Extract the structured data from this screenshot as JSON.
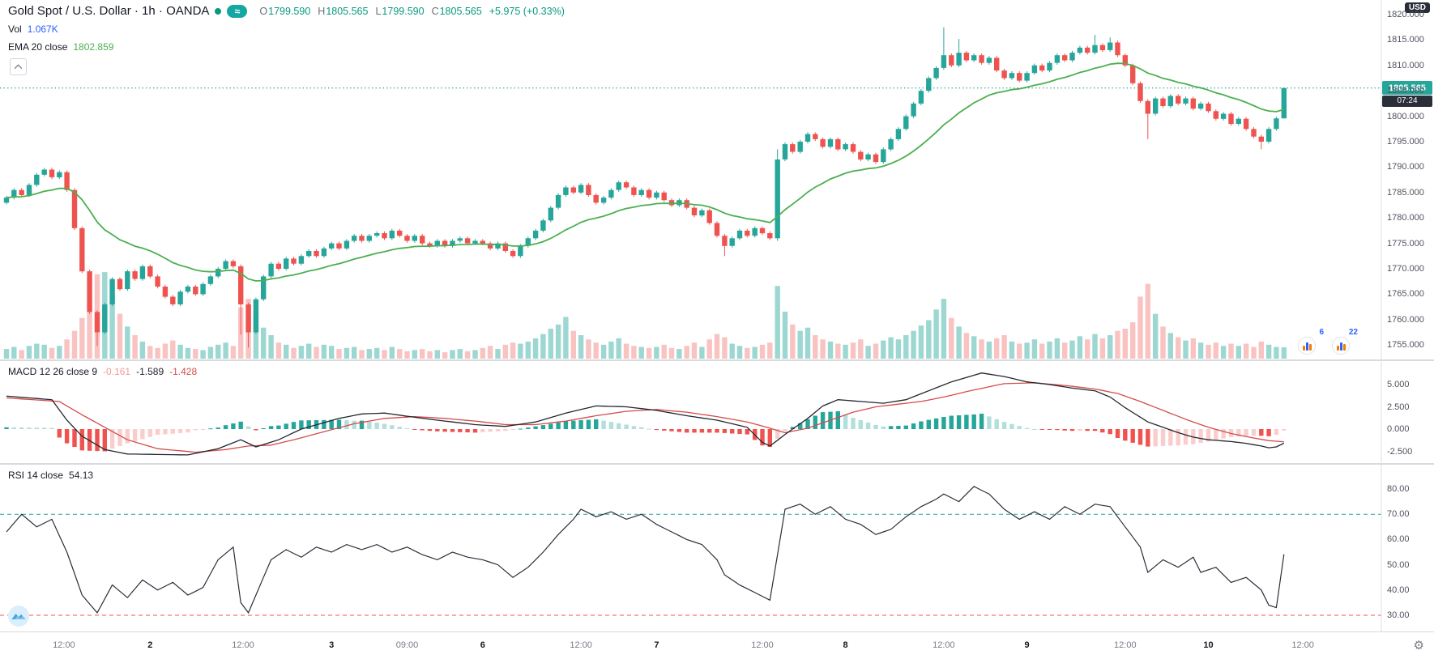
{
  "header": {
    "title": "Gold Spot / U.S. Dollar · 1h · OANDA",
    "provider_glyph": "≈",
    "ohlc": [
      {
        "k": "O",
        "v": "1799.590"
      },
      {
        "k": "H",
        "v": "1805.565"
      },
      {
        "k": "L",
        "v": "1799.590"
      },
      {
        "k": "C",
        "v": "1805.565"
      }
    ],
    "change": "+5.975 (+0.33%)",
    "vol_label": "Vol",
    "vol_value": "1.067K",
    "ema_label": "EMA 20 close",
    "ema_value": "1802.859"
  },
  "macd_pane": {
    "label": "MACD 12 26 close 9",
    "values": [
      "-0.161",
      "-1.589",
      "-1.428"
    ],
    "axis_labels": [
      "5.000",
      "2.500",
      "0.000",
      "-2.500"
    ]
  },
  "rsi_pane": {
    "label": "RSI 14 close",
    "value": "54.13",
    "axis_labels": [
      "80.00",
      "70.00",
      "60.00",
      "50.00",
      "40.00",
      "30.00"
    ]
  },
  "price_axis": {
    "labels": [
      "1820.000",
      "1815.000",
      "1810.000",
      "1805.000",
      "1800.000",
      "1795.000",
      "1790.000",
      "1785.000",
      "1780.000",
      "1775.000",
      "1770.000",
      "1765.000",
      "1760.000",
      "1755.000"
    ],
    "currency_label": "USD",
    "last_price": "1805.565",
    "countdown": "07:24"
  },
  "time_axis": {
    "labels": [
      {
        "text": "12:00",
        "bar": 7.6,
        "type": "time"
      },
      {
        "text": "2",
        "bar": 19,
        "type": "day"
      },
      {
        "text": "12:00",
        "bar": 31.3,
        "type": "time"
      },
      {
        "text": "3",
        "bar": 43,
        "type": "day"
      },
      {
        "text": "09:00",
        "bar": 53,
        "type": "time"
      },
      {
        "text": "6",
        "bar": 63,
        "type": "day"
      },
      {
        "text": "12:00",
        "bar": 76,
        "type": "time"
      },
      {
        "text": "7",
        "bar": 86,
        "type": "day"
      },
      {
        "text": "12:00",
        "bar": 100,
        "type": "time"
      },
      {
        "text": "8",
        "bar": 111,
        "type": "day"
      },
      {
        "text": "12:00",
        "bar": 124,
        "type": "time"
      },
      {
        "text": "9",
        "bar": 135,
        "type": "day"
      },
      {
        "text": "12:00",
        "bar": 148,
        "type": "time"
      },
      {
        "text": "10",
        "bar": 159,
        "type": "day"
      },
      {
        "text": "12:00",
        "bar": 171.5,
        "type": "time"
      }
    ]
  },
  "badges": {
    "gauge1": "6",
    "gauge2": "22"
  },
  "colors": {
    "up": "#26a69a",
    "down": "#ef5350",
    "vol_up": "rgba(38,166,154,0.45)",
    "vol_down": "rgba(239,83,80,0.35)",
    "ema": "#4caf50",
    "current_price_line": "#089981",
    "price_badge_bg": "#26a69a",
    "countdown_bg": "#2a2e39",
    "macd_line": "#22262f",
    "signal_line": "#d64b4b",
    "hist_pos": "#26a69a",
    "hist_pos_light": "#b2dfdb",
    "hist_neg": "#ef5350",
    "hist_neg_light": "#facdcd",
    "rsi_line": "#2a2e39",
    "rsi_upper_band": "#26a69a",
    "rsi_lower_band": "#ef5350",
    "ohlc_value": "#089981",
    "vol_value": "#2962ff",
    "ema_value": "#4caf50",
    "hist_value_text": "#f29999",
    "macd_value_text": "#22262f",
    "signal_value_text": "#d64b4b",
    "axis_text": "#50535e",
    "day_label": "#131722",
    "time_label": "#787b86",
    "divider": "#b2b5be",
    "title_text": "#131722",
    "provider_icon_bg": "#15a8a2",
    "market_open_dot": "#089981"
  },
  "chart_data": [
    {
      "type": "candlestick",
      "title": "Gold Spot / U.S. Dollar",
      "interval": "1h",
      "exchange": "OANDA",
      "indicators": [
        "EMA 20",
        "Volume"
      ],
      "ema_period": 20,
      "ema_current": 1802.859,
      "volume_current_k": 1.067,
      "ohlc_current": {
        "open": 1799.59,
        "high": 1805.565,
        "low": 1799.59,
        "close": 1805.565,
        "change_pct": 0.33
      },
      "ylim": [
        1753,
        1822
      ],
      "first_open": 1783.0,
      "closes": [
        1784.0,
        1785.5,
        1784.5,
        1786.5,
        1788.5,
        1789.5,
        1788.0,
        1789.0,
        1785.5,
        1778.0,
        1769.5,
        1761.5,
        1757.5,
        1763.0,
        1768.0,
        1766.0,
        1769.5,
        1768.0,
        1770.5,
        1768.5,
        1766.5,
        1764.5,
        1763.0,
        1765.5,
        1766.5,
        1765.0,
        1767.0,
        1768.5,
        1770.0,
        1771.5,
        1770.5,
        1763.0,
        1757.5,
        1764.0,
        1768.5,
        1771.0,
        1770.0,
        1772.0,
        1771.0,
        1772.5,
        1773.5,
        1772.5,
        1774.0,
        1775.0,
        1774.0,
        1775.5,
        1776.5,
        1775.5,
        1776.5,
        1777.0,
        1776.0,
        1777.5,
        1776.5,
        1775.5,
        1776.5,
        1775.0,
        1774.5,
        1775.5,
        1774.5,
        1775.5,
        1776.0,
        1775.0,
        1775.5,
        1775.0,
        1774.0,
        1775.0,
        1773.5,
        1772.5,
        1774.5,
        1776.0,
        1777.5,
        1779.5,
        1782.0,
        1784.5,
        1786.0,
        1785.0,
        1786.5,
        1784.5,
        1783.0,
        1784.0,
        1785.5,
        1787.0,
        1786.0,
        1784.5,
        1785.5,
        1784.0,
        1785.0,
        1783.5,
        1782.5,
        1783.5,
        1782.0,
        1780.5,
        1781.5,
        1779.0,
        1776.5,
        1774.5,
        1776.0,
        1777.5,
        1776.5,
        1778.0,
        1777.0,
        1776.0,
        1791.5,
        1794.5,
        1793.0,
        1795.0,
        1796.5,
        1795.5,
        1794.0,
        1795.5,
        1793.5,
        1794.5,
        1793.0,
        1791.5,
        1792.5,
        1791.0,
        1793.5,
        1795.5,
        1797.5,
        1800.0,
        1802.5,
        1805.0,
        1807.5,
        1809.5,
        1812.0,
        1810.0,
        1812.5,
        1811.0,
        1812.0,
        1810.5,
        1811.5,
        1809.0,
        1807.5,
        1808.5,
        1807.0,
        1808.5,
        1810.0,
        1809.0,
        1810.5,
        1812.0,
        1811.0,
        1812.5,
        1813.5,
        1812.5,
        1814.0,
        1813.0,
        1814.5,
        1812.0,
        1810.0,
        1806.5,
        1803.0,
        1800.5,
        1803.5,
        1802.0,
        1804.0,
        1802.5,
        1803.5,
        1801.5,
        1802.5,
        1801.0,
        1799.5,
        1800.5,
        1798.5,
        1799.5,
        1797.5,
        1796.0,
        1795.0,
        1797.5,
        1799.59,
        1805.565
      ],
      "volumes_k": [
        0.9,
        1.1,
        0.8,
        1.2,
        1.4,
        1.3,
        1.0,
        1.2,
        1.8,
        2.6,
        3.8,
        5.5,
        7.9,
        8.1,
        5.9,
        4.2,
        3.0,
        2.2,
        1.6,
        1.2,
        1.0,
        1.4,
        1.7,
        1.3,
        1.0,
        0.9,
        0.8,
        1.1,
        1.3,
        1.5,
        1.2,
        4.8,
        5.6,
        4.1,
        2.9,
        2.2,
        1.5,
        1.3,
        1.0,
        1.2,
        1.4,
        1.1,
        1.3,
        1.2,
        0.9,
        1.0,
        1.1,
        0.8,
        0.9,
        1.0,
        0.8,
        1.1,
        0.9,
        0.7,
        0.8,
        0.9,
        0.7,
        0.8,
        0.6,
        0.8,
        0.9,
        0.7,
        0.8,
        1.0,
        1.2,
        0.9,
        1.3,
        1.5,
        1.4,
        1.6,
        1.9,
        2.3,
        2.8,
        3.2,
        3.9,
        2.6,
        2.2,
        1.8,
        1.5,
        1.3,
        1.6,
        1.9,
        1.4,
        1.2,
        1.1,
        1.0,
        1.1,
        1.3,
        1.0,
        0.9,
        1.2,
        1.5,
        1.1,
        1.8,
        2.3,
        2.0,
        1.4,
        1.2,
        1.0,
        1.1,
        1.3,
        1.5,
        6.8,
        4.4,
        3.2,
        2.6,
        2.9,
        2.2,
        1.8,
        1.6,
        1.4,
        1.3,
        1.5,
        1.8,
        1.2,
        1.4,
        1.7,
        2.0,
        1.8,
        2.2,
        2.6,
        3.1,
        3.6,
        4.6,
        5.6,
        3.8,
        3.0,
        2.4,
        2.1,
        1.8,
        1.6,
        1.9,
        2.2,
        1.6,
        1.4,
        1.5,
        1.8,
        1.4,
        1.6,
        1.9,
        1.5,
        1.7,
        2.1,
        1.8,
        2.3,
        1.9,
        2.2,
        2.6,
        2.8,
        3.4,
        5.8,
        7.0,
        4.2,
        3.0,
        2.4,
        2.0,
        1.7,
        1.9,
        1.5,
        1.3,
        1.5,
        1.2,
        1.4,
        1.2,
        1.4,
        1.1,
        1.6,
        1.3,
        1.1,
        1.067
      ],
      "wick_overrides": {
        "12": [
          null,
          1754.8
        ],
        "31": [
          null,
          1757.0
        ],
        "32": [
          null,
          1754.5
        ],
        "95": [
          null,
          1772.5
        ],
        "102": [
          1793.5,
          1775.5
        ],
        "124": [
          1817.5,
          null
        ],
        "126": [
          1815.2,
          null
        ],
        "144": [
          1816.0,
          null
        ],
        "146": [
          1815.5,
          null
        ],
        "151": [
          null,
          1795.5
        ],
        "166": [
          null,
          1793.5
        ],
        "169": [
          1805.565,
          1799.59
        ]
      }
    },
    {
      "type": "line+histogram",
      "name": "MACD 12 26 close 9",
      "current": {
        "histogram": -0.161,
        "macd": -1.589,
        "signal": -1.428
      },
      "ylim": [
        -3.5,
        6.8
      ],
      "macd_keyframes": [
        [
          0,
          3.7
        ],
        [
          6,
          3.3
        ],
        [
          8,
          1.0
        ],
        [
          10,
          -0.8
        ],
        [
          13,
          -2.3
        ],
        [
          16,
          -2.8
        ],
        [
          24,
          -2.9
        ],
        [
          28,
          -2.2
        ],
        [
          31,
          -1.2
        ],
        [
          33,
          -2.0
        ],
        [
          36,
          -1.2
        ],
        [
          39,
          0.0
        ],
        [
          44,
          1.2
        ],
        [
          47,
          1.7
        ],
        [
          50,
          1.8
        ],
        [
          56,
          1.1
        ],
        [
          62,
          0.5
        ],
        [
          66,
          0.3
        ],
        [
          70,
          0.8
        ],
        [
          74,
          1.8
        ],
        [
          78,
          2.6
        ],
        [
          82,
          2.5
        ],
        [
          86,
          2.1
        ],
        [
          90,
          1.5
        ],
        [
          94,
          1.0
        ],
        [
          98,
          0.2
        ],
        [
          100,
          -1.5
        ],
        [
          101,
          -1.9
        ],
        [
          103,
          -0.6
        ],
        [
          106,
          1.2
        ],
        [
          108,
          2.6
        ],
        [
          110,
          3.3
        ],
        [
          113,
          3.1
        ],
        [
          116,
          2.9
        ],
        [
          119,
          3.3
        ],
        [
          122,
          4.3
        ],
        [
          125,
          5.3
        ],
        [
          129,
          6.3
        ],
        [
          132,
          5.9
        ],
        [
          135,
          5.3
        ],
        [
          138,
          5.0
        ],
        [
          141,
          4.6
        ],
        [
          144,
          4.3
        ],
        [
          146,
          3.6
        ],
        [
          148,
          2.4
        ],
        [
          151,
          0.8
        ],
        [
          153,
          0.2
        ],
        [
          155,
          -0.4
        ],
        [
          157,
          -0.9
        ],
        [
          159,
          -1.2
        ],
        [
          162,
          -1.4
        ],
        [
          164,
          -1.6
        ],
        [
          166,
          -1.9
        ],
        [
          167,
          -2.1
        ],
        [
          168,
          -2.0
        ],
        [
          169,
          -1.589
        ]
      ],
      "signal_keyframes": [
        [
          0,
          3.5
        ],
        [
          7,
          3.1
        ],
        [
          10,
          1.6
        ],
        [
          13,
          0.2
        ],
        [
          16,
          -1.2
        ],
        [
          20,
          -2.2
        ],
        [
          25,
          -2.6
        ],
        [
          29,
          -2.3
        ],
        [
          32,
          -1.9
        ],
        [
          35,
          -1.8
        ],
        [
          38,
          -1.2
        ],
        [
          42,
          -0.3
        ],
        [
          46,
          0.6
        ],
        [
          50,
          1.2
        ],
        [
          54,
          1.4
        ],
        [
          58,
          1.2
        ],
        [
          62,
          0.9
        ],
        [
          66,
          0.5
        ],
        [
          70,
          0.5
        ],
        [
          74,
          0.9
        ],
        [
          78,
          1.5
        ],
        [
          82,
          2.0
        ],
        [
          86,
          2.2
        ],
        [
          90,
          1.9
        ],
        [
          94,
          1.4
        ],
        [
          98,
          0.8
        ],
        [
          101,
          0.1
        ],
        [
          103,
          -0.4
        ],
        [
          106,
          0.1
        ],
        [
          109,
          1.0
        ],
        [
          112,
          1.9
        ],
        [
          115,
          2.5
        ],
        [
          118,
          2.8
        ],
        [
          121,
          3.1
        ],
        [
          124,
          3.6
        ],
        [
          128,
          4.4
        ],
        [
          132,
          5.1
        ],
        [
          136,
          5.2
        ],
        [
          140,
          4.9
        ],
        [
          144,
          4.5
        ],
        [
          147,
          4.0
        ],
        [
          150,
          3.1
        ],
        [
          153,
          2.1
        ],
        [
          156,
          1.1
        ],
        [
          159,
          0.2
        ],
        [
          162,
          -0.5
        ],
        [
          165,
          -1.0
        ],
        [
          167,
          -1.3
        ],
        [
          169,
          -1.428
        ]
      ]
    },
    {
      "type": "line",
      "name": "RSI 14 close",
      "current": 54.13,
      "bands": [
        70,
        30
      ],
      "ylim": [
        25,
        85
      ],
      "keyframes": [
        [
          0,
          63
        ],
        [
          2,
          70
        ],
        [
          4,
          65
        ],
        [
          6,
          68
        ],
        [
          8,
          55
        ],
        [
          10,
          38
        ],
        [
          12,
          31
        ],
        [
          14,
          42
        ],
        [
          16,
          37
        ],
        [
          18,
          44
        ],
        [
          20,
          40
        ],
        [
          22,
          43
        ],
        [
          24,
          38
        ],
        [
          26,
          41
        ],
        [
          28,
          52
        ],
        [
          30,
          57
        ],
        [
          31,
          35
        ],
        [
          32,
          31
        ],
        [
          35,
          52
        ],
        [
          37,
          56
        ],
        [
          39,
          53
        ],
        [
          41,
          57
        ],
        [
          43,
          55
        ],
        [
          45,
          58
        ],
        [
          47,
          56
        ],
        [
          49,
          58
        ],
        [
          51,
          55
        ],
        [
          53,
          57
        ],
        [
          55,
          54
        ],
        [
          57,
          52
        ],
        [
          59,
          55
        ],
        [
          61,
          53
        ],
        [
          63,
          52
        ],
        [
          65,
          50
        ],
        [
          67,
          45
        ],
        [
          69,
          49
        ],
        [
          71,
          55
        ],
        [
          73,
          62
        ],
        [
          75,
          68
        ],
        [
          76,
          72
        ],
        [
          78,
          69
        ],
        [
          80,
          71
        ],
        [
          82,
          68
        ],
        [
          84,
          70
        ],
        [
          86,
          66
        ],
        [
          88,
          63
        ],
        [
          90,
          60
        ],
        [
          92,
          58
        ],
        [
          94,
          52
        ],
        [
          95,
          46
        ],
        [
          97,
          42
        ],
        [
          99,
          39
        ],
        [
          101,
          36
        ],
        [
          103,
          72
        ],
        [
          105,
          74
        ],
        [
          107,
          70
        ],
        [
          109,
          73
        ],
        [
          111,
          68
        ],
        [
          113,
          66
        ],
        [
          115,
          62
        ],
        [
          117,
          64
        ],
        [
          119,
          69
        ],
        [
          121,
          73
        ],
        [
          123,
          76
        ],
        [
          124,
          78
        ],
        [
          126,
          75
        ],
        [
          128,
          81
        ],
        [
          130,
          78
        ],
        [
          132,
          72
        ],
        [
          134,
          68
        ],
        [
          136,
          71
        ],
        [
          138,
          68
        ],
        [
          140,
          73
        ],
        [
          142,
          70
        ],
        [
          144,
          74
        ],
        [
          146,
          73
        ],
        [
          148,
          65
        ],
        [
          150,
          57
        ],
        [
          151,
          47
        ],
        [
          153,
          52
        ],
        [
          155,
          49
        ],
        [
          157,
          53
        ],
        [
          158,
          47
        ],
        [
          160,
          49
        ],
        [
          162,
          43
        ],
        [
          164,
          45
        ],
        [
          166,
          40
        ],
        [
          167,
          34
        ],
        [
          168,
          33
        ],
        [
          169,
          54.13
        ]
      ]
    }
  ]
}
